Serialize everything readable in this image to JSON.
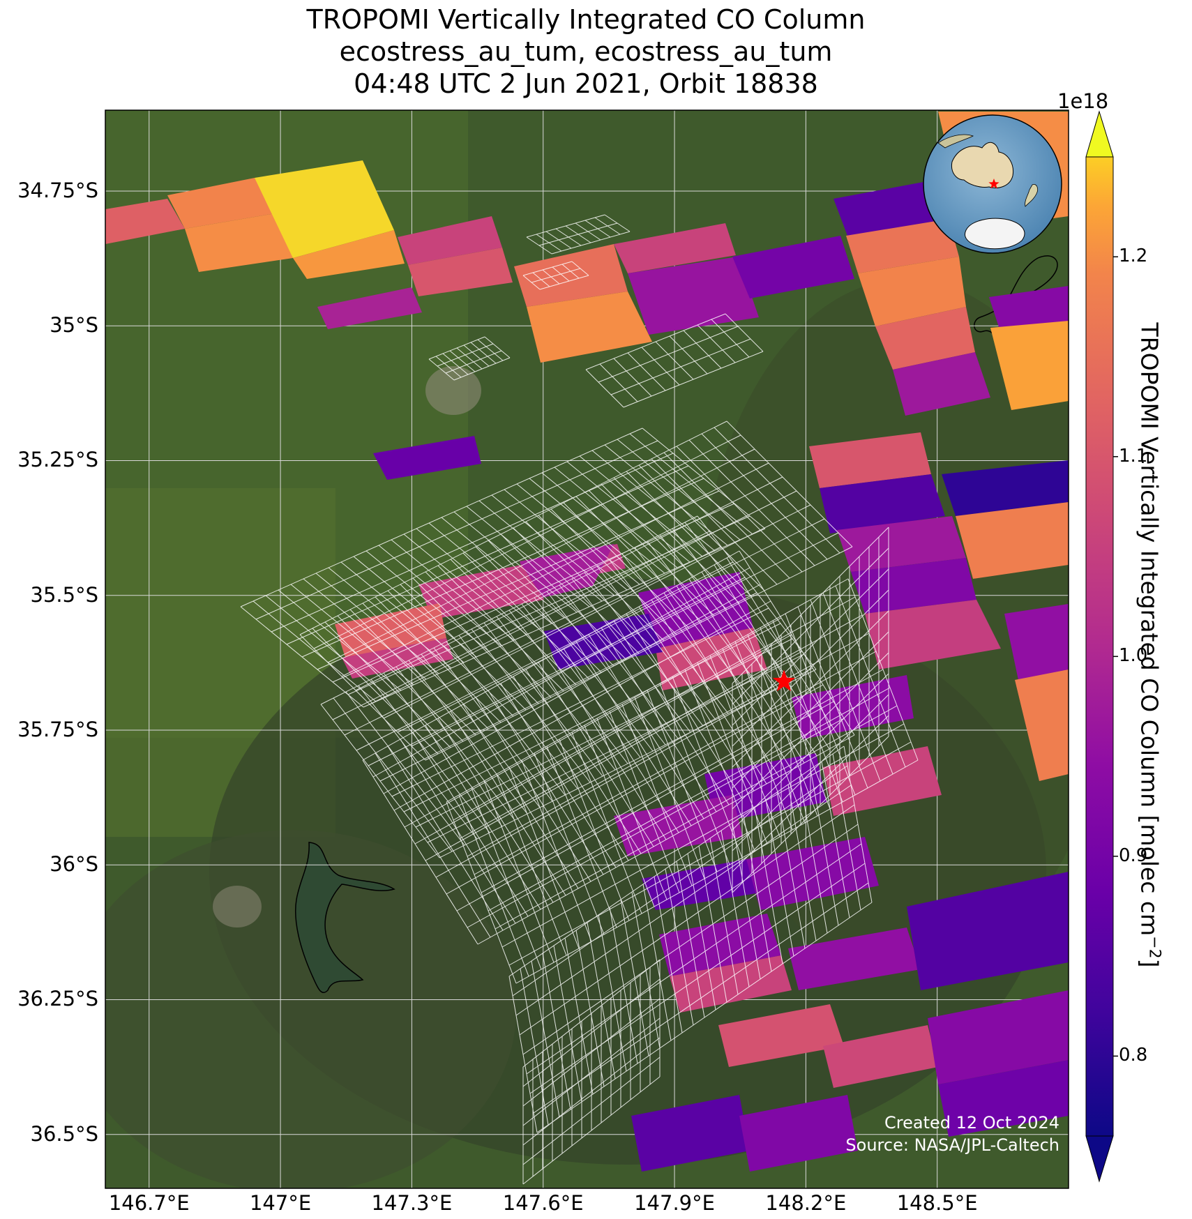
{
  "title": {
    "line1": "TROPOMI Vertically Integrated CO Column",
    "line2": "ecostress_au_tum, ecostress_au_tum",
    "line3": "04:48 UTC 2 Jun 2021, Orbit 18838"
  },
  "map": {
    "extent": {
      "lon_min": 146.6,
      "lon_max": 148.8,
      "lat_min": -36.6,
      "lat_max": -34.6
    },
    "lat_ticks": [
      {
        "value": -34.75,
        "label": "34.75°S"
      },
      {
        "value": -35.0,
        "label": "35°S"
      },
      {
        "value": -35.25,
        "label": "35.25°S"
      },
      {
        "value": -35.5,
        "label": "35.5°S"
      },
      {
        "value": -35.75,
        "label": "35.75°S"
      },
      {
        "value": -36.0,
        "label": "36°S"
      },
      {
        "value": -36.25,
        "label": "36.25°S"
      },
      {
        "value": -36.5,
        "label": "36.5°S"
      }
    ],
    "lon_ticks": [
      {
        "value": 146.7,
        "label": "146.7°E"
      },
      {
        "value": 147.0,
        "label": "147°E"
      },
      {
        "value": 147.3,
        "label": "147.3°E"
      },
      {
        "value": 147.6,
        "label": "147.6°E"
      },
      {
        "value": 147.9,
        "label": "147.9°E"
      },
      {
        "value": 148.2,
        "label": "148.2°E"
      },
      {
        "value": 148.5,
        "label": "148.5°E"
      }
    ],
    "site_marker": {
      "lon": 148.15,
      "lat": -35.66,
      "color": "#ff0000"
    },
    "basemap": "satellite imagery",
    "overlay_color": "#ffffff"
  },
  "colorbar": {
    "label": "TROPOMI Vertically Integrated CO Column [molec cm",
    "label_sup": "−2",
    "label_end": "]",
    "exponent": "1e18",
    "min": 0.76,
    "max": 1.25,
    "ticks": [
      {
        "value": 0.8,
        "label": "0.8"
      },
      {
        "value": 0.9,
        "label": "0.9"
      },
      {
        "value": 1.0,
        "label": "1.0"
      },
      {
        "value": 1.1,
        "label": "1.1"
      },
      {
        "value": 1.2,
        "label": "1.2"
      }
    ],
    "colormap": "plasma",
    "extend": "both"
  },
  "inset": {
    "type": "globe",
    "region": "Australia",
    "marker_color": "#ff0000"
  },
  "credit": {
    "line1": "Created 12 Oct 2024",
    "line2": "Source: NASA/JPL-Caltech"
  },
  "pixels": [
    {
      "c": 1.12
    },
    {
      "c": 1.19
    },
    {
      "c": 1.2
    },
    {
      "c": 1.24
    },
    {
      "c": 1.21
    },
    {
      "c": 0.99
    },
    {
      "c": 1.06
    },
    {
      "c": 1.1
    },
    {
      "c": 1.15
    },
    {
      "c": 1.2
    },
    {
      "c": 1.06
    },
    {
      "c": 0.96
    },
    {
      "c": 0.9
    },
    {
      "c": 0.86
    },
    {
      "c": 1.16
    },
    {
      "c": 1.19
    },
    {
      "c": 1.13
    },
    {
      "c": 0.97
    },
    {
      "c": 0.93
    },
    {
      "c": 1.22
    },
    {
      "c": 1.2
    },
    {
      "c": 1.1
    },
    {
      "c": 0.85
    },
    {
      "c": 0.8
    },
    {
      "c": 1.18
    },
    {
      "c": 0.95
    },
    {
      "c": 1.18
    },
    {
      "c": 0.97
    },
    {
      "c": 0.92
    },
    {
      "c": 1.05
    },
    {
      "c": 0.88
    },
    {
      "c": 1.04
    },
    {
      "c": 0.98
    },
    {
      "c": 1.05
    },
    {
      "c": 1.12
    },
    {
      "c": 1.05
    },
    {
      "c": 0.93
    },
    {
      "c": 1.07
    },
    {
      "c": 0.84
    },
    {
      "c": 0.94
    },
    {
      "c": 0.9
    },
    {
      "c": 1.06
    },
    {
      "c": 0.96
    },
    {
      "c": 0.87
    },
    {
      "c": 0.93
    },
    {
      "c": 0.94
    },
    {
      "c": 1.06
    },
    {
      "c": 0.95
    },
    {
      "c": 0.85
    },
    {
      "c": 1.09
    },
    {
      "c": 1.07
    },
    {
      "c": 0.93
    },
    {
      "c": 0.89
    },
    {
      "c": 0.86
    },
    {
      "c": 0.92
    }
  ]
}
